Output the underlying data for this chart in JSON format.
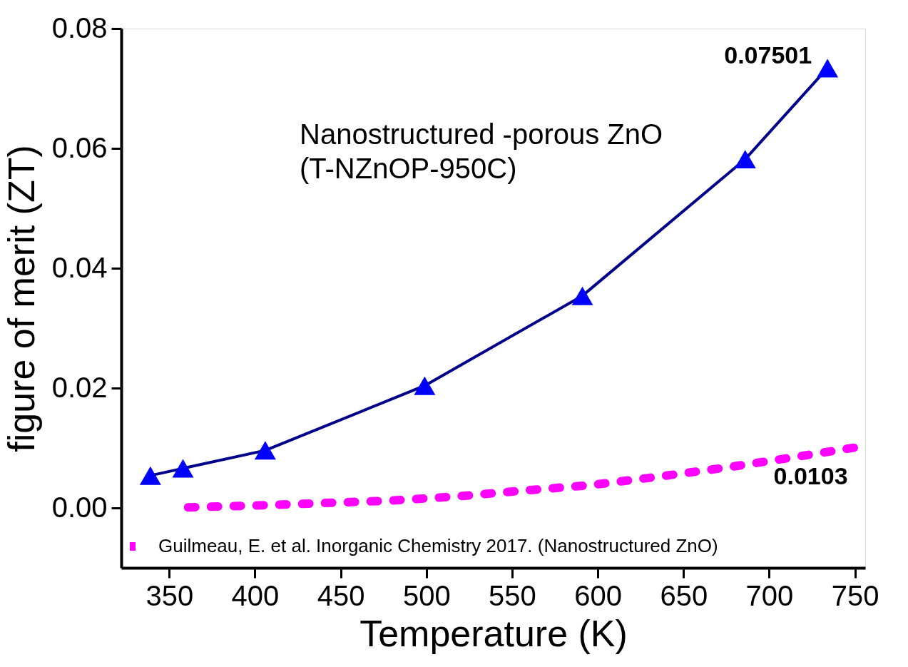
{
  "chart_data": {
    "type": "line",
    "xlabel": "Temperature (K)",
    "ylabel": "figure of merit  (ZT)",
    "xlim": [
      322,
      756
    ],
    "ylim": [
      -0.01,
      0.08
    ],
    "xticks": [
      350,
      400,
      450,
      500,
      550,
      600,
      650,
      700,
      750
    ],
    "yticks": [
      {
        "value": 0,
        "label": "0.00"
      },
      {
        "value": 0.02,
        "label": "0.02"
      },
      {
        "value": 0.04,
        "label": "0.04"
      },
      {
        "value": 0.06,
        "label": "0.06"
      },
      {
        "value": 0.08,
        "label": "0.08"
      }
    ],
    "grid": false,
    "legend": "bottom left",
    "series": [
      {
        "name": "Nanostructured -porous ZnO\n(T-NZnOP-950C)",
        "color": "#0000ff",
        "marker": "triangle",
        "line_style": "solid",
        "x": [
          339,
          358,
          406,
          499,
          591,
          686,
          734
        ],
        "values": [
          0.0054,
          0.0066,
          0.0096,
          0.0204,
          0.0354,
          0.0582,
          0.0734
        ]
      },
      {
        "name": "Guilmeau, E. et al. Inorganic Chemistry 2017. (Nanostructured ZnO)",
        "color": "#ff00ff",
        "marker": "none",
        "line_style": "dotted",
        "x": [
          361,
          400,
          439,
          478,
          517,
          557,
          596,
          635,
          674,
          713,
          755
        ],
        "values": [
          0.0001,
          0.0004,
          0.0008,
          0.0012,
          0.0019,
          0.0029,
          0.0038,
          0.0052,
          0.0067,
          0.0084,
          0.0103
        ]
      }
    ],
    "annotations": [
      {
        "text": "0.07501",
        "x": 734,
        "y": 0.0734
      },
      {
        "text": "0.0103",
        "x": 755,
        "y": 0.0103
      }
    ]
  }
}
